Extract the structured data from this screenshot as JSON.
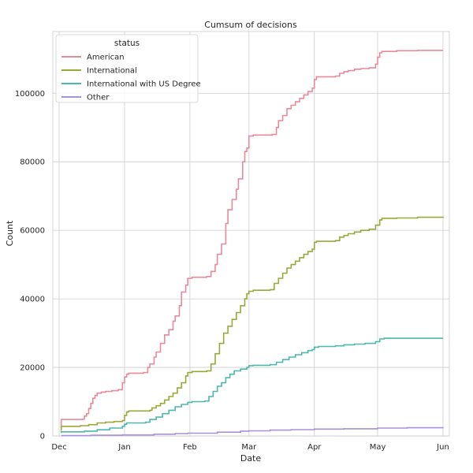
{
  "chart_data": {
    "type": "line",
    "step": true,
    "title": "Cumsum of decisions",
    "xlabel": "Date",
    "ylabel": "Count",
    "x_ticks": [
      "Dec",
      "Jan",
      "Feb",
      "Mar",
      "Apr",
      "May",
      "Jun"
    ],
    "x_tick_days": [
      0,
      31,
      62,
      90,
      121,
      151,
      182
    ],
    "xlim_days": [
      -3,
      185
    ],
    "y_ticks": [
      0,
      20000,
      40000,
      60000,
      80000,
      100000
    ],
    "ylim": [
      0,
      118000
    ],
    "grid": true,
    "legend": {
      "title": "status",
      "position": "top-left"
    },
    "series": [
      {
        "name": "American",
        "color": "#e88a9c",
        "points": [
          [
            1,
            2500
          ],
          [
            1,
            4800
          ],
          [
            11,
            4900
          ],
          [
            12,
            5800
          ],
          [
            13,
            6500
          ],
          [
            14,
            8000
          ],
          [
            15,
            9500
          ],
          [
            16,
            11000
          ],
          [
            17,
            11800
          ],
          [
            18,
            12500
          ],
          [
            20,
            12800
          ],
          [
            22,
            13000
          ],
          [
            25,
            13200
          ],
          [
            28,
            13500
          ],
          [
            30,
            15500
          ],
          [
            31,
            17200
          ],
          [
            32,
            18000
          ],
          [
            33,
            18300
          ],
          [
            40,
            18500
          ],
          [
            42,
            20000
          ],
          [
            43,
            21000
          ],
          [
            45,
            23000
          ],
          [
            46,
            24500
          ],
          [
            48,
            27000
          ],
          [
            50,
            29500
          ],
          [
            52,
            31000
          ],
          [
            54,
            33500
          ],
          [
            55,
            35000
          ],
          [
            57,
            38000
          ],
          [
            58,
            42000
          ],
          [
            60,
            44000
          ],
          [
            61,
            46000
          ],
          [
            63,
            46300
          ],
          [
            70,
            46500
          ],
          [
            72,
            48000
          ],
          [
            74,
            50000
          ],
          [
            75,
            53000
          ],
          [
            77,
            56000
          ],
          [
            79,
            62000
          ],
          [
            80,
            66000
          ],
          [
            82,
            69000
          ],
          [
            84,
            72000
          ],
          [
            85,
            75000
          ],
          [
            87,
            80000
          ],
          [
            88,
            83000
          ],
          [
            89,
            84000
          ],
          [
            90,
            87500
          ],
          [
            92,
            87800
          ],
          [
            101,
            88000
          ],
          [
            103,
            90000
          ],
          [
            104,
            92000
          ],
          [
            106,
            93500
          ],
          [
            108,
            95500
          ],
          [
            110,
            96500
          ],
          [
            112,
            97500
          ],
          [
            114,
            98500
          ],
          [
            116,
            99500
          ],
          [
            118,
            100500
          ],
          [
            120,
            101500
          ],
          [
            121,
            104000
          ],
          [
            122,
            104800
          ],
          [
            131,
            105000
          ],
          [
            133,
            105800
          ],
          [
            135,
            106300
          ],
          [
            137,
            106600
          ],
          [
            140,
            107000
          ],
          [
            143,
            107200
          ],
          [
            147,
            107400
          ],
          [
            150,
            108500
          ],
          [
            151,
            110500
          ],
          [
            152,
            111800
          ],
          [
            153,
            112200
          ],
          [
            160,
            112400
          ],
          [
            170,
            112500
          ],
          [
            182,
            112500
          ]
        ]
      },
      {
        "name": "International",
        "color": "#9aa83a",
        "points": [
          [
            1,
            1500
          ],
          [
            1,
            2800
          ],
          [
            10,
            3000
          ],
          [
            14,
            3300
          ],
          [
            18,
            3800
          ],
          [
            22,
            4000
          ],
          [
            26,
            4200
          ],
          [
            30,
            4500
          ],
          [
            31,
            6000
          ],
          [
            32,
            7000
          ],
          [
            33,
            7300
          ],
          [
            43,
            7500
          ],
          [
            44,
            8200
          ],
          [
            46,
            8800
          ],
          [
            48,
            9500
          ],
          [
            50,
            10500
          ],
          [
            52,
            11500
          ],
          [
            54,
            12500
          ],
          [
            56,
            14000
          ],
          [
            58,
            15500
          ],
          [
            60,
            17500
          ],
          [
            61,
            18500
          ],
          [
            63,
            18800
          ],
          [
            70,
            19000
          ],
          [
            72,
            21000
          ],
          [
            74,
            24000
          ],
          [
            76,
            27000
          ],
          [
            78,
            30000
          ],
          [
            80,
            32000
          ],
          [
            82,
            34000
          ],
          [
            84,
            36000
          ],
          [
            86,
            38000
          ],
          [
            88,
            40000
          ],
          [
            89,
            41500
          ],
          [
            90,
            42200
          ],
          [
            92,
            42500
          ],
          [
            100,
            42700
          ],
          [
            102,
            44500
          ],
          [
            104,
            46000
          ],
          [
            106,
            47500
          ],
          [
            108,
            49000
          ],
          [
            110,
            50000
          ],
          [
            112,
            51000
          ],
          [
            114,
            52000
          ],
          [
            116,
            53000
          ],
          [
            118,
            53800
          ],
          [
            120,
            54500
          ],
          [
            121,
            56500
          ],
          [
            122,
            56800
          ],
          [
            131,
            57000
          ],
          [
            133,
            58000
          ],
          [
            135,
            58500
          ],
          [
            137,
            59000
          ],
          [
            140,
            59500
          ],
          [
            143,
            60000
          ],
          [
            147,
            60300
          ],
          [
            150,
            61500
          ],
          [
            152,
            63000
          ],
          [
            153,
            63500
          ],
          [
            160,
            63600
          ],
          [
            170,
            63800
          ],
          [
            182,
            64000
          ]
        ]
      },
      {
        "name": "International with US Degree",
        "color": "#4db8ac",
        "points": [
          [
            1,
            900
          ],
          [
            1,
            1200
          ],
          [
            12,
            1400
          ],
          [
            18,
            1800
          ],
          [
            24,
            2300
          ],
          [
            30,
            2800
          ],
          [
            31,
            3400
          ],
          [
            32,
            3800
          ],
          [
            41,
            4000
          ],
          [
            43,
            4800
          ],
          [
            46,
            5500
          ],
          [
            49,
            6500
          ],
          [
            52,
            7500
          ],
          [
            55,
            8500
          ],
          [
            58,
            9200
          ],
          [
            61,
            9800
          ],
          [
            63,
            10000
          ],
          [
            69,
            10200
          ],
          [
            71,
            11500
          ],
          [
            73,
            13000
          ],
          [
            75,
            14500
          ],
          [
            77,
            15500
          ],
          [
            79,
            17000
          ],
          [
            81,
            18000
          ],
          [
            83,
            19000
          ],
          [
            86,
            19500
          ],
          [
            89,
            20000
          ],
          [
            90,
            20500
          ],
          [
            92,
            20600
          ],
          [
            100,
            20800
          ],
          [
            103,
            21500
          ],
          [
            106,
            22300
          ],
          [
            109,
            23000
          ],
          [
            112,
            23700
          ],
          [
            115,
            24300
          ],
          [
            118,
            24900
          ],
          [
            120,
            25200
          ],
          [
            121,
            25900
          ],
          [
            123,
            26100
          ],
          [
            131,
            26300
          ],
          [
            135,
            26600
          ],
          [
            140,
            26800
          ],
          [
            145,
            27000
          ],
          [
            150,
            27500
          ],
          [
            152,
            28300
          ],
          [
            154,
            28500
          ],
          [
            182,
            28500
          ]
        ]
      },
      {
        "name": "Other",
        "color": "#a691dc",
        "points": [
          [
            1,
            100
          ],
          [
            15,
            200
          ],
          [
            30,
            300
          ],
          [
            45,
            500
          ],
          [
            55,
            700
          ],
          [
            61,
            800
          ],
          [
            75,
            1100
          ],
          [
            86,
            1400
          ],
          [
            90,
            1500
          ],
          [
            100,
            1700
          ],
          [
            110,
            1850
          ],
          [
            121,
            2000
          ],
          [
            135,
            2100
          ],
          [
            151,
            2300
          ],
          [
            165,
            2400
          ],
          [
            182,
            2500
          ]
        ]
      }
    ]
  }
}
